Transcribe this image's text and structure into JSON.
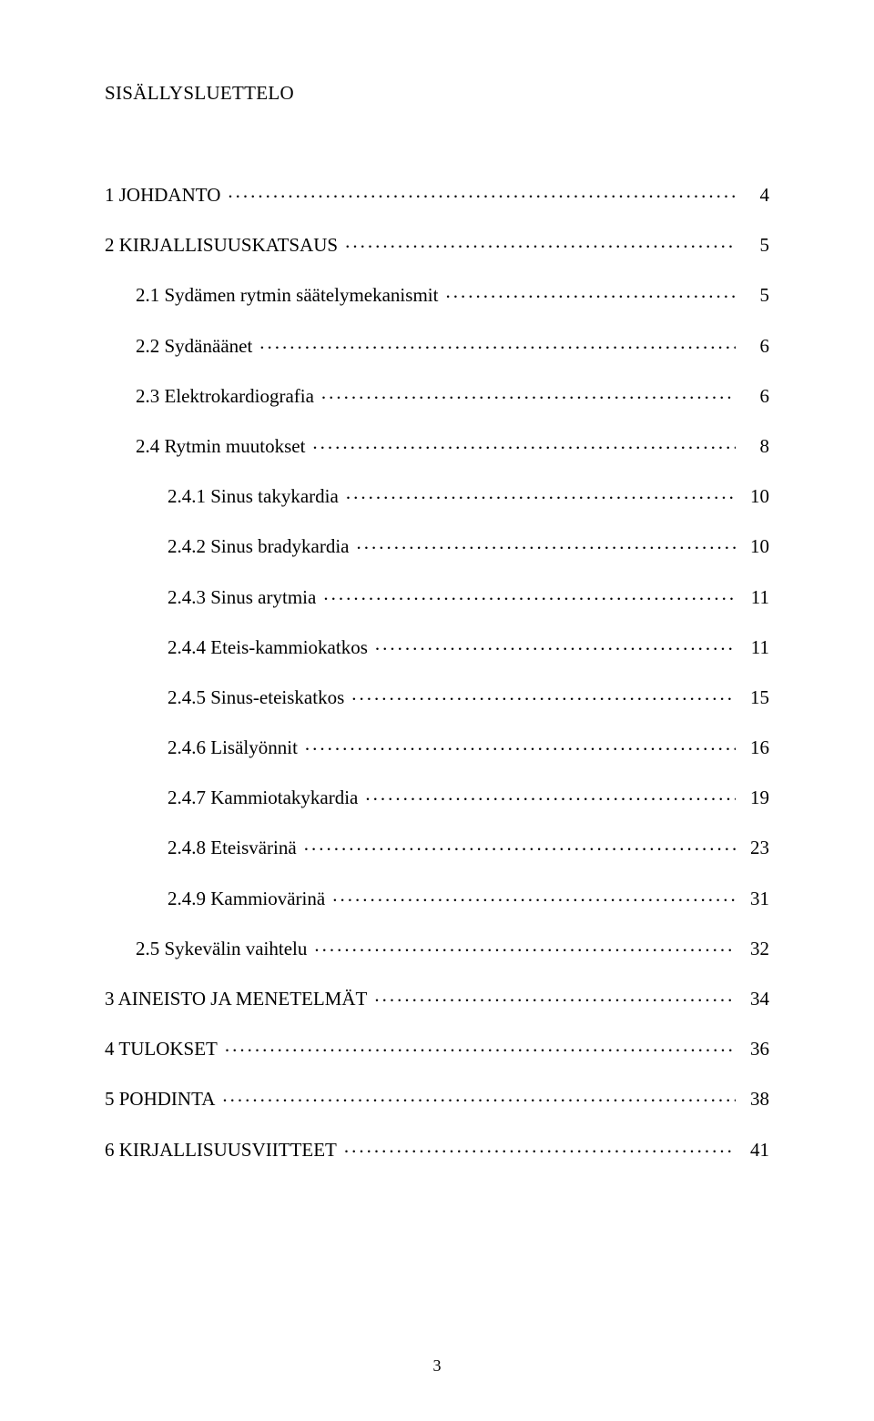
{
  "title": "SISÄLLYSLUETTELO",
  "page_number": "3",
  "toc": [
    {
      "level": 1,
      "label": "1 JOHDANTO",
      "page": "4"
    },
    {
      "level": 1,
      "label": "2 KIRJALLISUUSKATSAUS",
      "page": "5"
    },
    {
      "level": 2,
      "label": "2.1 Sydämen rytmin säätelymekanismit",
      "page": "5"
    },
    {
      "level": 2,
      "label": "2.2 Sydänäänet",
      "page": "6"
    },
    {
      "level": 2,
      "label": "2.3 Elektrokardiografia",
      "page": "6"
    },
    {
      "level": 2,
      "label": "2.4 Rytmin muutokset",
      "page": "8"
    },
    {
      "level": 3,
      "label": "2.4.1 Sinus takykardia",
      "page": "10"
    },
    {
      "level": 3,
      "label": "2.4.2 Sinus bradykardia",
      "page": "10"
    },
    {
      "level": 3,
      "label": "2.4.3 Sinus arytmia",
      "page": "11"
    },
    {
      "level": 3,
      "label": "2.4.4 Eteis-kammiokatkos",
      "page": "11"
    },
    {
      "level": 3,
      "label": "2.4.5 Sinus-eteiskatkos",
      "page": "15"
    },
    {
      "level": 3,
      "label": "2.4.6 Lisälyönnit",
      "page": "16"
    },
    {
      "level": 3,
      "label": "2.4.7 Kammiotakykardia",
      "page": "19"
    },
    {
      "level": 3,
      "label": "2.4.8 Eteisvärinä",
      "page": "23"
    },
    {
      "level": 3,
      "label": "2.4.9 Kammiovärinä",
      "page": "31"
    },
    {
      "level": 2,
      "label": "2.5 Sykevälin vaihtelu",
      "page": "32"
    },
    {
      "level": 1,
      "label": "3 AINEISTO JA MENETELMÄT",
      "page": "34"
    },
    {
      "level": 1,
      "label": "4 TULOKSET",
      "page": "36"
    },
    {
      "level": 1,
      "label": "5 POHDINTA",
      "page": "38"
    },
    {
      "level": 1,
      "label": "6 KIRJALLISUUSVIITTEET",
      "page": "41"
    }
  ]
}
